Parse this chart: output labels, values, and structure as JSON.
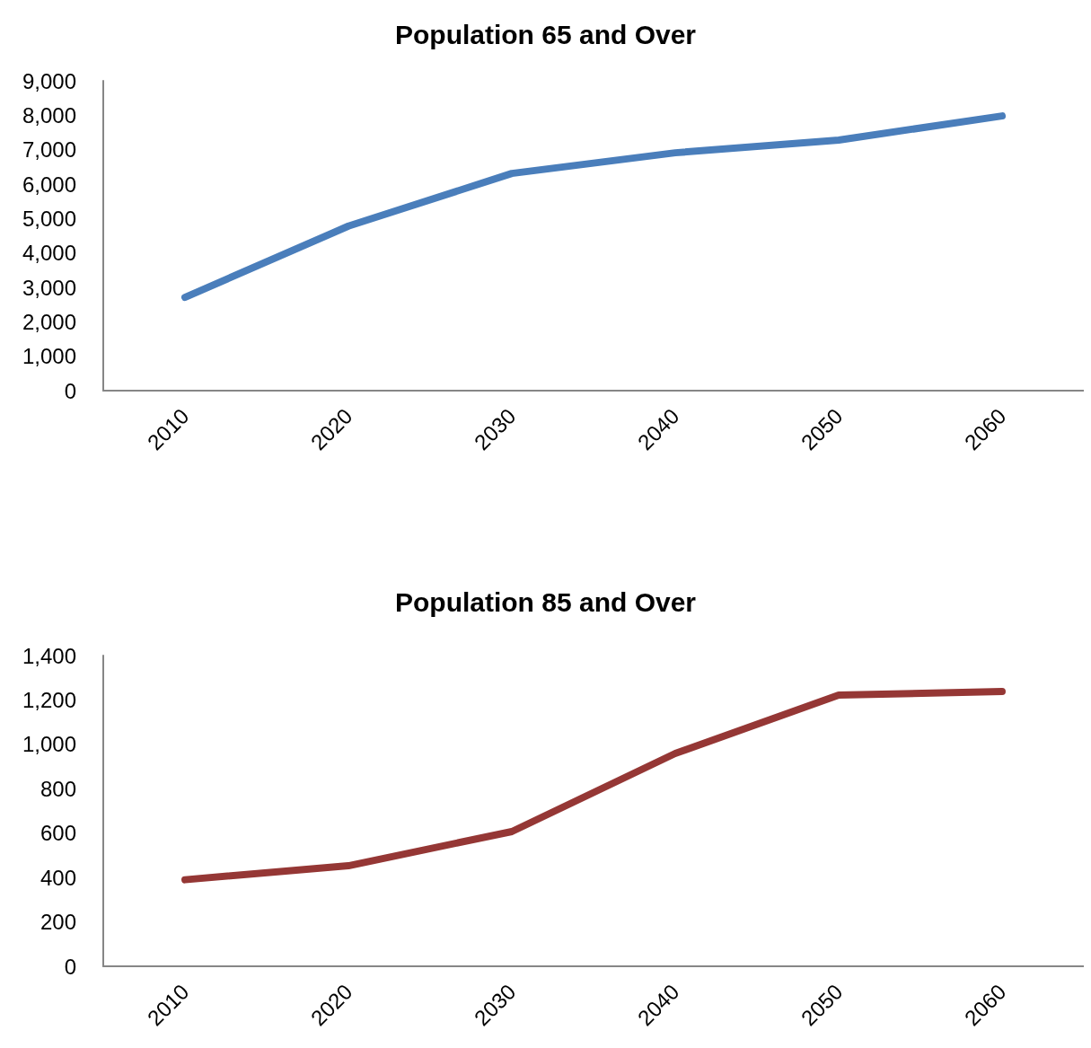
{
  "chart_data": [
    {
      "type": "line",
      "title": "Population 65 and Over",
      "categories": [
        "2010",
        "2020",
        "2030",
        "2040",
        "2050",
        "2060"
      ],
      "series": [
        {
          "color": "#4a7ebb",
          "values": [
            2710,
            4780,
            6310,
            6910,
            7280,
            7980
          ]
        }
      ],
      "ylim": [
        0,
        9000
      ],
      "yticks": [
        0,
        {
          "value": 1000,
          "label": "1,000"
        },
        {
          "value": 2000,
          "label": "2,000"
        },
        {
          "value": 3000,
          "label": "3,000"
        },
        {
          "value": 4000,
          "label": "4,000"
        },
        {
          "value": 5000,
          "label": "5,000"
        },
        {
          "value": 6000,
          "label": "6,000"
        },
        {
          "value": 7000,
          "label": "7,000"
        },
        {
          "value": 8000,
          "label": "8,000"
        },
        {
          "value": 9000,
          "label": "9,000"
        }
      ],
      "marker": "none"
    },
    {
      "type": "line",
      "title": "Population 85 and Over",
      "categories": [
        "2010",
        "2020",
        "2030",
        "2040",
        "2050",
        "2060"
      ],
      "series": [
        {
          "color": "#953735",
          "values": [
            390,
            453,
            607,
            959,
            1222,
            1238
          ]
        }
      ],
      "ylim": [
        0,
        1400
      ],
      "yticks": [
        0,
        200,
        400,
        600,
        800,
        {
          "value": 1000,
          "label": "1,000"
        },
        {
          "value": 1200,
          "label": "1,200"
        },
        {
          "value": 1400,
          "label": "1,400"
        }
      ],
      "marker": "none"
    }
  ]
}
